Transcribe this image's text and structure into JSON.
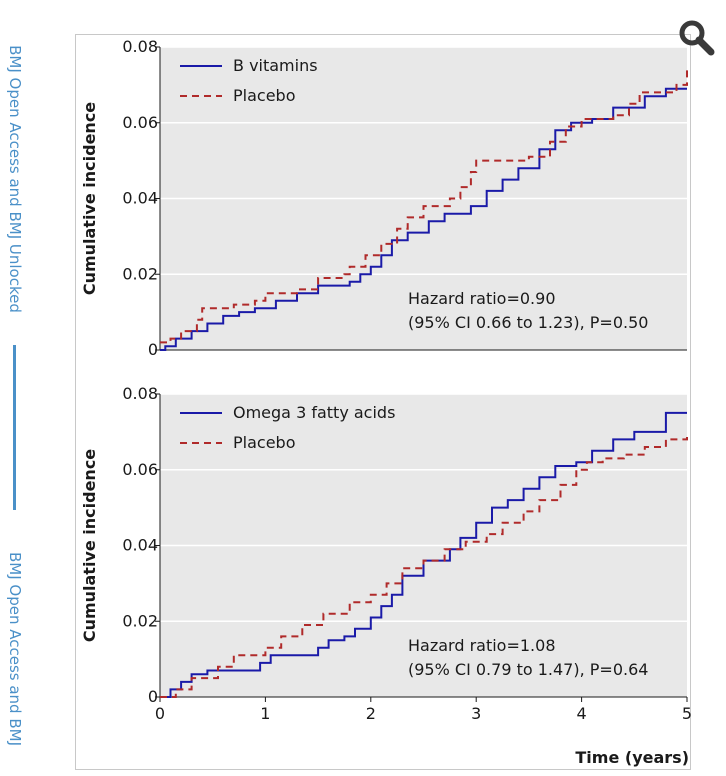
{
  "side_banner": {
    "text_top": "BMJ Open Access and BMJ Unlocked",
    "text_bottom": "BMJ Open Access and BMJ",
    "color": "#4a90c8"
  },
  "zoom_button": {
    "icon": "magnifier-icon"
  },
  "colors": {
    "treatment": "#1a1aa8",
    "placebo": "#b02a2a",
    "panel_bg": "#e8e8e8"
  },
  "chart_data": [
    {
      "type": "line",
      "ylabel": "Cumulative incidence",
      "xlabel": "",
      "xlim": [
        0,
        5
      ],
      "ylim": [
        0,
        0.08
      ],
      "y_ticks": [
        "0",
        "0.02",
        "0.04",
        "0.06",
        "0.08"
      ],
      "x_ticks": [],
      "legend_position": "top-left",
      "grid": "horizontal",
      "annotation": [
        "Hazard ratio=0.90",
        "(95% CI 0.66 to 1.23), P=0.50"
      ],
      "series": [
        {
          "name": "B vitamins",
          "style": "solid",
          "points": [
            [
              0,
              0
            ],
            [
              0.05,
              0.001
            ],
            [
              0.15,
              0.003
            ],
            [
              0.3,
              0.005
            ],
            [
              0.45,
              0.007
            ],
            [
              0.6,
              0.009
            ],
            [
              0.75,
              0.01
            ],
            [
              0.9,
              0.011
            ],
            [
              1.1,
              0.013
            ],
            [
              1.3,
              0.015
            ],
            [
              1.5,
              0.017
            ],
            [
              1.8,
              0.018
            ],
            [
              1.9,
              0.02
            ],
            [
              2.0,
              0.022
            ],
            [
              2.1,
              0.025
            ],
            [
              2.2,
              0.029
            ],
            [
              2.35,
              0.031
            ],
            [
              2.55,
              0.034
            ],
            [
              2.7,
              0.036
            ],
            [
              2.95,
              0.038
            ],
            [
              3.1,
              0.042
            ],
            [
              3.25,
              0.045
            ],
            [
              3.4,
              0.048
            ],
            [
              3.6,
              0.053
            ],
            [
              3.75,
              0.058
            ],
            [
              3.9,
              0.06
            ],
            [
              4.1,
              0.061
            ],
            [
              4.3,
              0.064
            ],
            [
              4.6,
              0.067
            ],
            [
              4.8,
              0.069
            ],
            [
              5.0,
              0.069
            ]
          ]
        },
        {
          "name": "Placebo",
          "style": "dashed",
          "points": [
            [
              0,
              0.002
            ],
            [
              0.1,
              0.003
            ],
            [
              0.2,
              0.005
            ],
            [
              0.35,
              0.008
            ],
            [
              0.4,
              0.011
            ],
            [
              0.7,
              0.012
            ],
            [
              0.9,
              0.013
            ],
            [
              1.0,
              0.015
            ],
            [
              1.3,
              0.016
            ],
            [
              1.5,
              0.019
            ],
            [
              1.75,
              0.02
            ],
            [
              1.8,
              0.022
            ],
            [
              1.95,
              0.025
            ],
            [
              2.1,
              0.028
            ],
            [
              2.25,
              0.032
            ],
            [
              2.35,
              0.035
            ],
            [
              2.5,
              0.038
            ],
            [
              2.75,
              0.04
            ],
            [
              2.85,
              0.043
            ],
            [
              2.95,
              0.047
            ],
            [
              3.0,
              0.05
            ],
            [
              3.5,
              0.051
            ],
            [
              3.7,
              0.055
            ],
            [
              3.85,
              0.059
            ],
            [
              4.0,
              0.061
            ],
            [
              4.3,
              0.062
            ],
            [
              4.45,
              0.065
            ],
            [
              4.55,
              0.068
            ],
            [
              4.9,
              0.07
            ],
            [
              5.0,
              0.075
            ]
          ]
        }
      ]
    },
    {
      "type": "line",
      "ylabel": "Cumulative incidence",
      "xlabel": "Time (years)",
      "xlim": [
        0,
        5
      ],
      "ylim": [
        0,
        0.08
      ],
      "y_ticks": [
        "0",
        "0.02",
        "0.04",
        "0.06",
        "0.08"
      ],
      "x_ticks": [
        "0",
        "1",
        "2",
        "3",
        "4",
        "5"
      ],
      "legend_position": "top-left",
      "grid": "horizontal",
      "annotation": [
        "Hazard ratio=1.08",
        "(95% CI 0.79 to 1.47), P=0.64"
      ],
      "series": [
        {
          "name": "Omega 3 fatty acids",
          "style": "solid",
          "points": [
            [
              0,
              0
            ],
            [
              0.1,
              0.002
            ],
            [
              0.2,
              0.004
            ],
            [
              0.3,
              0.006
            ],
            [
              0.45,
              0.007
            ],
            [
              0.8,
              0.007
            ],
            [
              0.95,
              0.009
            ],
            [
              1.05,
              0.011
            ],
            [
              1.35,
              0.011
            ],
            [
              1.5,
              0.013
            ],
            [
              1.6,
              0.015
            ],
            [
              1.75,
              0.016
            ],
            [
              1.85,
              0.018
            ],
            [
              2.0,
              0.021
            ],
            [
              2.1,
              0.024
            ],
            [
              2.2,
              0.027
            ],
            [
              2.3,
              0.032
            ],
            [
              2.5,
              0.036
            ],
            [
              2.75,
              0.039
            ],
            [
              2.85,
              0.042
            ],
            [
              3.0,
              0.046
            ],
            [
              3.15,
              0.05
            ],
            [
              3.3,
              0.052
            ],
            [
              3.45,
              0.055
            ],
            [
              3.6,
              0.058
            ],
            [
              3.75,
              0.061
            ],
            [
              3.95,
              0.062
            ],
            [
              4.1,
              0.065
            ],
            [
              4.3,
              0.068
            ],
            [
              4.5,
              0.07
            ],
            [
              4.7,
              0.07
            ],
            [
              4.8,
              0.075
            ],
            [
              5.0,
              0.075
            ]
          ]
        },
        {
          "name": "Placebo",
          "style": "dashed",
          "points": [
            [
              0,
              0
            ],
            [
              0.15,
              0.002
            ],
            [
              0.3,
              0.005
            ],
            [
              0.55,
              0.008
            ],
            [
              0.7,
              0.011
            ],
            [
              1.0,
              0.013
            ],
            [
              1.15,
              0.016
            ],
            [
              1.35,
              0.019
            ],
            [
              1.55,
              0.022
            ],
            [
              1.8,
              0.025
            ],
            [
              2.0,
              0.027
            ],
            [
              2.15,
              0.03
            ],
            [
              2.3,
              0.034
            ],
            [
              2.5,
              0.036
            ],
            [
              2.7,
              0.039
            ],
            [
              2.9,
              0.041
            ],
            [
              3.1,
              0.043
            ],
            [
              3.25,
              0.046
            ],
            [
              3.45,
              0.049
            ],
            [
              3.6,
              0.052
            ],
            [
              3.8,
              0.056
            ],
            [
              3.95,
              0.06
            ],
            [
              4.05,
              0.062
            ],
            [
              4.2,
              0.063
            ],
            [
              4.4,
              0.064
            ],
            [
              4.6,
              0.066
            ],
            [
              4.8,
              0.068
            ],
            [
              5.0,
              0.069
            ]
          ]
        }
      ]
    }
  ]
}
